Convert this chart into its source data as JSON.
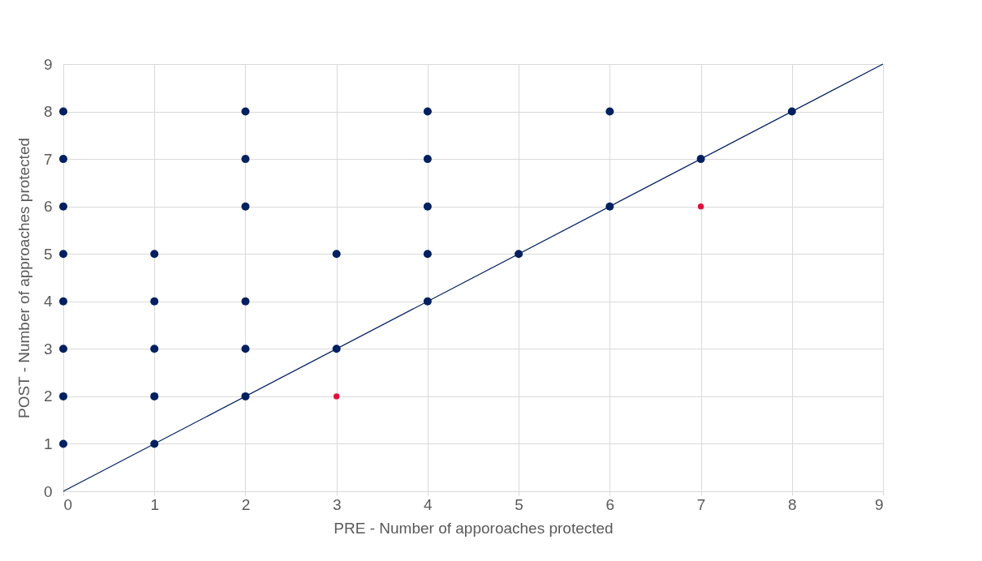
{
  "chart_data": {
    "type": "scatter",
    "xlabel": "PRE - Number of apporoaches protected",
    "ylabel": "POST - Number of approaches protected",
    "xlim": [
      0,
      9
    ],
    "ylim": [
      0,
      9
    ],
    "xticks": [
      0,
      1,
      2,
      3,
      4,
      5,
      6,
      7,
      8,
      9
    ],
    "yticks": [
      0,
      1,
      2,
      3,
      4,
      5,
      6,
      7,
      8,
      9
    ],
    "grid": true,
    "marker": "circle",
    "series": [
      {
        "color": "#002060",
        "x": [
          0,
          0,
          0,
          0,
          0,
          0,
          0,
          0,
          1,
          1,
          1,
          1,
          1,
          2,
          2,
          2,
          2,
          2,
          2,
          3,
          3,
          4,
          4,
          4,
          4,
          4,
          5,
          6,
          6,
          7,
          8
        ],
        "values": [
          1,
          2,
          3,
          4,
          5,
          6,
          7,
          8,
          1,
          2,
          3,
          4,
          5,
          2,
          3,
          4,
          6,
          7,
          8,
          3,
          5,
          4,
          5,
          6,
          7,
          8,
          5,
          6,
          8,
          7,
          8
        ]
      },
      {
        "color": "#e0103c",
        "x": [
          3,
          7
        ],
        "values": [
          2,
          6
        ]
      },
      {
        "type": "line",
        "marker": "none",
        "color": "#002060",
        "x": [
          0,
          9
        ],
        "values": [
          0,
          9
        ]
      }
    ]
  }
}
